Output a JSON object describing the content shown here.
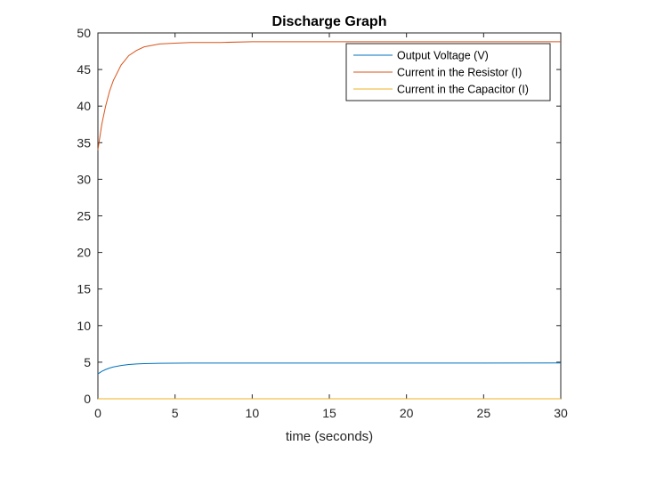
{
  "chart_data": {
    "type": "line",
    "title": "Discharge Graph",
    "xlabel": "time (seconds)",
    "ylabel": "",
    "xlim": [
      0,
      30
    ],
    "ylim": [
      0,
      50
    ],
    "x_ticks": [
      0,
      5,
      10,
      15,
      20,
      25,
      30
    ],
    "y_ticks": [
      0,
      5,
      10,
      15,
      20,
      25,
      30,
      35,
      40,
      45,
      50
    ],
    "grid": false,
    "legend_position": "top-right",
    "series": [
      {
        "name": "Output Voltage (V)",
        "color": "#0072BD",
        "x": [
          0,
          0.25,
          0.5,
          0.75,
          1,
          1.5,
          2,
          2.5,
          3,
          4,
          5,
          6,
          8,
          10,
          15,
          20,
          25,
          30
        ],
        "y": [
          3.4,
          3.75,
          4.0,
          4.2,
          4.35,
          4.55,
          4.68,
          4.76,
          4.81,
          4.85,
          4.87,
          4.88,
          4.88,
          4.88,
          4.88,
          4.88,
          4.88,
          4.9
        ]
      },
      {
        "name": "Current in the Resistor (I)",
        "color": "#D95319",
        "x": [
          0,
          0.25,
          0.5,
          0.75,
          1,
          1.5,
          2,
          2.5,
          3,
          4,
          5,
          6,
          8,
          10,
          15,
          20,
          25,
          30
        ],
        "y": [
          34.0,
          37.5,
          40.0,
          42.0,
          43.5,
          45.6,
          46.9,
          47.6,
          48.1,
          48.5,
          48.6,
          48.7,
          48.7,
          48.8,
          48.8,
          48.8,
          48.8,
          48.8
        ]
      },
      {
        "name": "Current in the Capacitor (I)",
        "color": "#EDB120",
        "x": [
          0,
          30
        ],
        "y": [
          0,
          0
        ]
      }
    ]
  }
}
